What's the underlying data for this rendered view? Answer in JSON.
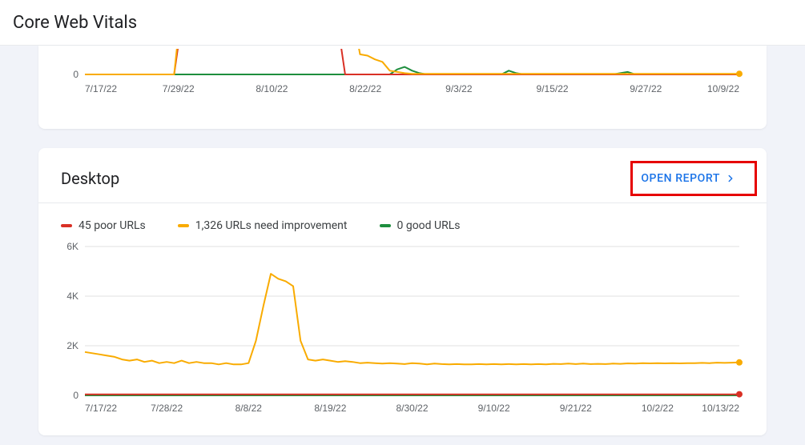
{
  "header": {
    "title": "Core Web Vitals"
  },
  "colors": {
    "poor": "#d93025",
    "improve": "#f9ab00",
    "good": "#1e8e3e",
    "link": "#1a73e8",
    "grid": "#e0e0e0",
    "ytick": "#5f6368",
    "highlight_border": "#e60000"
  },
  "top_chart": {
    "ylim": [
      0,
      6
    ],
    "yticks": [
      0
    ],
    "xticks": [
      "7/17/22",
      "7/29/22",
      "8/10/22",
      "8/22/22",
      "9/3/22",
      "9/15/22",
      "9/27/22",
      "10/9/22"
    ],
    "x_range_days": 88,
    "poor_y": [
      0,
      0,
      0,
      0,
      0,
      0,
      0,
      0,
      0,
      0,
      0,
      0,
      0,
      4.2,
      4.2,
      4.2,
      4.2,
      4.2,
      4.2,
      4.2,
      4.0,
      4.0,
      4.0,
      4.0,
      3.9,
      3.9,
      3.9,
      3.9,
      3.9,
      3.9,
      3.9,
      3.9,
      3.9,
      4.0,
      4.0,
      0,
      0,
      0,
      0,
      0,
      0,
      0,
      0,
      0,
      0,
      0,
      0,
      0,
      0,
      0,
      0,
      0,
      0,
      0,
      0,
      0,
      0,
      0,
      0,
      0,
      0,
      0,
      0,
      0,
      0,
      0,
      0,
      0,
      0,
      0,
      0,
      0,
      0,
      0,
      0,
      0,
      0,
      0,
      0,
      0,
      0,
      0,
      0,
      0,
      0,
      0,
      0,
      0,
      0
    ],
    "improve_y": [
      0,
      0,
      0,
      0,
      0,
      0,
      0,
      0,
      0,
      0,
      0,
      0,
      0,
      5.6,
      5.4,
      5.4,
      5.4,
      5.4,
      5.4,
      5.4,
      5.4,
      5.4,
      5.0,
      5.0,
      5.0,
      5.5,
      5.5,
      5.5,
      6.0,
      6.0,
      5.8,
      5.8,
      6.0,
      6.0,
      6.0,
      4.8,
      4.8,
      1.6,
      1.5,
      1.2,
      1.0,
      0.3,
      0.2,
      0.1,
      0.05,
      0.05,
      0.05,
      0.05,
      0.05,
      0.05,
      0.05,
      0.05,
      0.05,
      0.05,
      0.05,
      0.05,
      0.05,
      0.05,
      0.05,
      0.05,
      0.05,
      0.05,
      0.05,
      0.05,
      0.05,
      0.05,
      0.05,
      0.05,
      0.05,
      0.05,
      0.05,
      0.05,
      0.05,
      0.05,
      0.05,
      0.05,
      0.05,
      0.05,
      0.05,
      0.05,
      0.05,
      0.05,
      0.05,
      0.05,
      0.05,
      0.05,
      0.05,
      0.05,
      0.05
    ],
    "good_y": [
      0,
      0,
      0,
      0,
      0,
      0,
      0,
      0,
      0,
      0,
      0,
      0,
      0,
      0,
      0,
      0,
      0,
      0,
      0,
      0,
      0,
      0,
      0,
      0,
      0,
      0,
      0,
      0,
      0,
      0,
      0,
      0,
      0,
      0,
      0,
      0,
      0,
      0,
      0,
      0,
      0,
      0,
      0.4,
      0.6,
      0.3,
      0.1,
      0,
      0,
      0,
      0,
      0,
      0,
      0,
      0,
      0,
      0,
      0,
      0.3,
      0.1,
      0,
      0,
      0,
      0,
      0,
      0,
      0,
      0,
      0,
      0,
      0,
      0,
      0,
      0.1,
      0.2,
      0,
      0,
      0,
      0,
      0,
      0,
      0,
      0,
      0,
      0,
      0,
      0,
      0,
      0,
      0
    ]
  },
  "desktop_card": {
    "title": "Desktop",
    "open_label": "OPEN REPORT",
    "highlight": true,
    "legend": {
      "poor": "45 poor URLs",
      "improve": "1,326 URLs need improvement",
      "good": "0 good URLs"
    },
    "chart": {
      "type": "line",
      "ylim": [
        0,
        6000
      ],
      "yticks": [
        0,
        2000,
        4000,
        6000
      ],
      "ytick_labels": [
        "0",
        "2K",
        "4K",
        "6K"
      ],
      "xticks": [
        "7/17/22",
        "7/28/22",
        "8/8/22",
        "8/19/22",
        "8/30/22",
        "9/10/22",
        "9/21/22",
        "10/2/22",
        "10/13/22"
      ],
      "x_range_days": 88,
      "improve_y": [
        1750,
        1700,
        1650,
        1600,
        1550,
        1450,
        1400,
        1450,
        1350,
        1400,
        1300,
        1350,
        1300,
        1400,
        1300,
        1350,
        1300,
        1300,
        1250,
        1300,
        1250,
        1250,
        1300,
        2200,
        3600,
        4900,
        4700,
        4600,
        4400,
        2200,
        1450,
        1400,
        1450,
        1400,
        1350,
        1380,
        1350,
        1300,
        1320,
        1300,
        1280,
        1300,
        1280,
        1260,
        1300,
        1280,
        1250,
        1280,
        1260,
        1250,
        1260,
        1250,
        1250,
        1260,
        1250,
        1260,
        1250,
        1260,
        1250,
        1260,
        1250,
        1260,
        1250,
        1270,
        1260,
        1280,
        1260,
        1280,
        1260,
        1270,
        1260,
        1280,
        1270,
        1290,
        1280,
        1300,
        1290,
        1300,
        1290,
        1300,
        1290,
        1300,
        1300,
        1310,
        1300,
        1320,
        1310,
        1320,
        1330
      ],
      "poor_y": [
        40,
        40,
        40,
        40,
        40,
        40,
        40,
        40,
        40,
        40,
        40,
        40,
        40,
        40,
        40,
        40,
        40,
        40,
        40,
        40,
        40,
        40,
        40,
        40,
        40,
        40,
        40,
        40,
        40,
        40,
        40,
        40,
        40,
        40,
        40,
        40,
        40,
        40,
        40,
        40,
        40,
        40,
        40,
        40,
        40,
        40,
        40,
        40,
        40,
        40,
        40,
        40,
        40,
        40,
        40,
        40,
        40,
        40,
        40,
        40,
        40,
        40,
        40,
        40,
        40,
        40,
        40,
        40,
        40,
        40,
        40,
        40,
        40,
        40,
        40,
        40,
        40,
        40,
        40,
        40,
        40,
        40,
        40,
        40,
        40,
        40,
        40,
        40,
        45
      ],
      "good_y": [
        0,
        0,
        0,
        0,
        0,
        0,
        0,
        0,
        0,
        0,
        0,
        0,
        0,
        0,
        0,
        0,
        0,
        0,
        0,
        0,
        0,
        0,
        0,
        0,
        0,
        0,
        0,
        0,
        0,
        0,
        0,
        0,
        0,
        0,
        0,
        0,
        0,
        0,
        0,
        0,
        0,
        0,
        0,
        0,
        0,
        0,
        0,
        0,
        0,
        0,
        0,
        0,
        0,
        0,
        0,
        0,
        0,
        0,
        0,
        0,
        0,
        0,
        0,
        0,
        0,
        0,
        0,
        0,
        0,
        0,
        0,
        0,
        0,
        0,
        0,
        0,
        0,
        0,
        0,
        0,
        0,
        0,
        0,
        0,
        0,
        0,
        0,
        0,
        0
      ]
    }
  }
}
